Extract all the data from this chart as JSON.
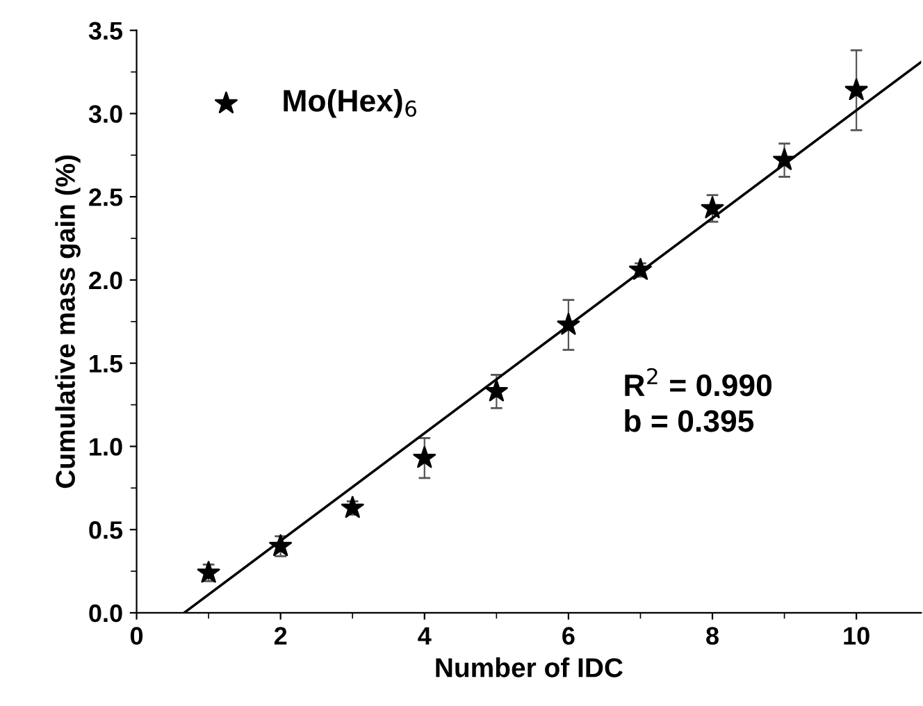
{
  "chart_data": {
    "type": "scatter",
    "xlabel": "Number of IDC",
    "ylabel": "Cumulative mass gain (%)",
    "xlim": [
      0,
      10.9
    ],
    "xticks": [
      0,
      2,
      4,
      6,
      8,
      10
    ],
    "ylim": [
      0,
      3.5
    ],
    "yticks": [
      {
        "value": 0,
        "label": "0.0"
      },
      0.5,
      {
        "value": 1,
        "label": "1.0"
      },
      1.5,
      {
        "value": 2,
        "label": "2.0"
      },
      2.5,
      {
        "value": 3,
        "label": "3.0"
      },
      3.5
    ],
    "series": [
      {
        "name": "Mo(Hex)$_{6}$",
        "color": "#000000",
        "marker": "star",
        "x": [
          1,
          2,
          3,
          4,
          5,
          6,
          7,
          8,
          9,
          10
        ],
        "values": [
          0.24,
          0.4,
          0.63,
          0.93,
          1.33,
          1.73,
          2.06,
          2.43,
          2.72,
          3.14
        ],
        "errors": [
          0.05,
          0.06,
          0.04,
          0.12,
          0.1,
          0.15,
          0.04,
          0.08,
          0.1,
          0.24
        ]
      },
      {
        "type": "line",
        "color": "#000000",
        "x": [
          0.66,
          10.9
        ],
        "values": [
          0,
          3.31
        ]
      }
    ],
    "annotations": [
      "R$^{2}$ = 0.990\nb = 0.395"
    ],
    "legend": "top left",
    "grid": false
  }
}
